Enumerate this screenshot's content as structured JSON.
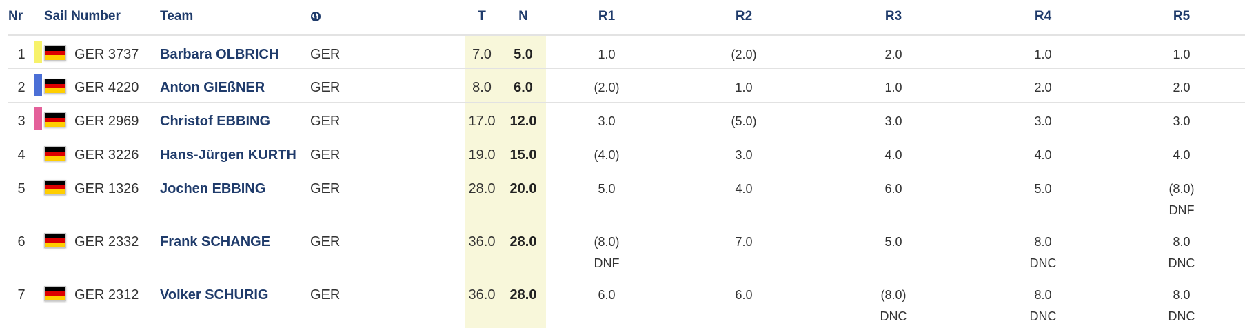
{
  "header": {
    "nr": "Nr",
    "sail_number": "Sail Number",
    "team": "Team",
    "country_icon": "globe-icon",
    "total": "T",
    "net": "N",
    "races": [
      "R1",
      "R2",
      "R3",
      "R4",
      "R5"
    ]
  },
  "colors": {
    "header_text": "#1f3b6b",
    "band": "#f8f7da",
    "yellow": "#f7f26a",
    "blue": "#4b6fd6",
    "pink": "#e4609a"
  },
  "rows": [
    {
      "nr": "1",
      "marker": "#f7f26a",
      "sail": "GER 3737",
      "team": "Barbara OLBRICH",
      "country": "GER",
      "total": "7.0",
      "net": "5.0",
      "races": [
        {
          "v": "1.0",
          "c": ""
        },
        {
          "v": "(2.0)",
          "c": ""
        },
        {
          "v": "2.0",
          "c": ""
        },
        {
          "v": "1.0",
          "c": ""
        },
        {
          "v": "1.0",
          "c": ""
        }
      ]
    },
    {
      "nr": "2",
      "marker": "#4b6fd6",
      "sail": "GER 4220",
      "team": "Anton GIEßNER",
      "country": "GER",
      "total": "8.0",
      "net": "6.0",
      "races": [
        {
          "v": "(2.0)",
          "c": ""
        },
        {
          "v": "1.0",
          "c": ""
        },
        {
          "v": "1.0",
          "c": ""
        },
        {
          "v": "2.0",
          "c": ""
        },
        {
          "v": "2.0",
          "c": ""
        }
      ]
    },
    {
      "nr": "3",
      "marker": "#e4609a",
      "sail": "GER 2969",
      "team": "Christof EBBING",
      "country": "GER",
      "total": "17.0",
      "net": "12.0",
      "races": [
        {
          "v": "3.0",
          "c": ""
        },
        {
          "v": "(5.0)",
          "c": ""
        },
        {
          "v": "3.0",
          "c": ""
        },
        {
          "v": "3.0",
          "c": ""
        },
        {
          "v": "3.0",
          "c": ""
        }
      ]
    },
    {
      "nr": "4",
      "marker": "",
      "sail": "GER 3226",
      "team": "Hans-Jürgen KURTH",
      "country": "GER",
      "total": "19.0",
      "net": "15.0",
      "races": [
        {
          "v": "(4.0)",
          "c": ""
        },
        {
          "v": "3.0",
          "c": ""
        },
        {
          "v": "4.0",
          "c": ""
        },
        {
          "v": "4.0",
          "c": ""
        },
        {
          "v": "4.0",
          "c": ""
        }
      ]
    },
    {
      "nr": "5",
      "marker": "",
      "sail": "GER 1326",
      "team": "Jochen EBBING",
      "country": "GER",
      "total": "28.0",
      "net": "20.0",
      "races": [
        {
          "v": "5.0",
          "c": ""
        },
        {
          "v": "4.0",
          "c": ""
        },
        {
          "v": "6.0",
          "c": ""
        },
        {
          "v": "5.0",
          "c": ""
        },
        {
          "v": "(8.0)",
          "c": "DNF"
        }
      ]
    },
    {
      "nr": "6",
      "marker": "",
      "sail": "GER 2332",
      "team": "Frank SCHANGE",
      "country": "GER",
      "total": "36.0",
      "net": "28.0",
      "races": [
        {
          "v": "(8.0)",
          "c": "DNF"
        },
        {
          "v": "7.0",
          "c": ""
        },
        {
          "v": "5.0",
          "c": ""
        },
        {
          "v": "8.0",
          "c": "DNC"
        },
        {
          "v": "8.0",
          "c": "DNC"
        }
      ]
    },
    {
      "nr": "7",
      "marker": "",
      "sail": "GER 2312",
      "team": "Volker SCHURIG",
      "country": "GER",
      "total": "36.0",
      "net": "28.0",
      "races": [
        {
          "v": "6.0",
          "c": ""
        },
        {
          "v": "6.0",
          "c": ""
        },
        {
          "v": "(8.0)",
          "c": "DNC"
        },
        {
          "v": "8.0",
          "c": "DNC"
        },
        {
          "v": "8.0",
          "c": "DNC"
        }
      ]
    }
  ]
}
